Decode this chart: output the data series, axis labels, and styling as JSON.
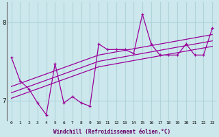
{
  "xlabel": "Windchill (Refroidissement éolien,°C)",
  "background_color": "#cce8ec",
  "grid_color": "#aed4da",
  "line_color": "#990099",
  "x_hours": [
    0,
    1,
    2,
    3,
    4,
    5,
    6,
    7,
    8,
    9,
    10,
    11,
    12,
    13,
    14,
    15,
    16,
    17,
    18,
    19,
    20,
    21,
    22,
    23
  ],
  "main_series": [
    7.55,
    7.25,
    7.15,
    6.97,
    6.82,
    7.47,
    6.97,
    7.05,
    6.97,
    6.93,
    7.72,
    7.65,
    7.65,
    7.65,
    7.6,
    8.1,
    7.72,
    7.58,
    7.58,
    7.58,
    7.72,
    7.58,
    7.58,
    7.92
  ],
  "smooth1": [
    7.18,
    7.22,
    7.26,
    7.3,
    7.34,
    7.38,
    7.42,
    7.46,
    7.5,
    7.54,
    7.58,
    7.6,
    7.62,
    7.64,
    7.66,
    7.68,
    7.7,
    7.72,
    7.74,
    7.76,
    7.78,
    7.8,
    7.82,
    7.84
  ],
  "smooth2": [
    7.1,
    7.14,
    7.18,
    7.22,
    7.26,
    7.3,
    7.34,
    7.38,
    7.42,
    7.46,
    7.5,
    7.52,
    7.54,
    7.56,
    7.58,
    7.6,
    7.62,
    7.64,
    7.66,
    7.68,
    7.7,
    7.72,
    7.74,
    7.76
  ],
  "smooth3": [
    7.03,
    7.07,
    7.11,
    7.15,
    7.19,
    7.23,
    7.27,
    7.31,
    7.35,
    7.39,
    7.43,
    7.45,
    7.47,
    7.49,
    7.51,
    7.53,
    7.55,
    7.57,
    7.59,
    7.61,
    7.63,
    7.65,
    7.67,
    7.69
  ],
  "ylim": [
    6.75,
    8.25
  ],
  "yticks": [
    7,
    8
  ],
  "xticks": [
    0,
    1,
    2,
    3,
    4,
    5,
    6,
    7,
    8,
    9,
    10,
    11,
    12,
    13,
    14,
    15,
    16,
    17,
    18,
    19,
    20,
    21,
    22,
    23
  ]
}
